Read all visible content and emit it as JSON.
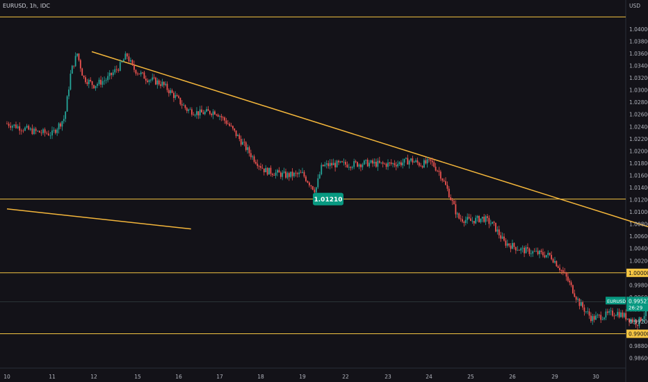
{
  "header": {
    "title": "EURUSD, 1h, IDC",
    "currency": "USD"
  },
  "colors": {
    "background": "#131218",
    "up": "#26a69a",
    "down": "#ef5350",
    "trend": "#f5b73b",
    "level": "#f5c542",
    "zone": "#5a2a30",
    "label_green": "#089981",
    "projection": "#ffffff"
  },
  "chart_data": {
    "type": "candlestick",
    "title": "EURUSD, 1h, IDC",
    "x_ticks": [
      "10",
      "11",
      "12",
      "15",
      "16",
      "17",
      "18",
      "19",
      "22",
      "23",
      "24",
      "25",
      "26",
      "29",
      "30"
    ],
    "y_ticks": [
      "1.04000",
      "1.03800",
      "1.03600",
      "1.03400",
      "1.03200",
      "1.03000",
      "1.02800",
      "1.02600",
      "1.02400",
      "1.02200",
      "1.02000",
      "1.01800",
      "1.01600",
      "1.01400",
      "1.01200",
      "1.01000",
      "1.00800",
      "1.00600",
      "1.00400",
      "1.00200",
      "1.00000",
      "0.99800",
      "0.99600",
      "0.99400",
      "0.99200",
      "0.99000",
      "0.98800",
      "0.98600"
    ],
    "ylim": [
      0.9855,
      1.0425
    ],
    "price_path": [
      [
        0,
        1.0245
      ],
      [
        0.6,
        1.0232
      ],
      [
        1.0,
        1.0228
      ],
      [
        1.3,
        1.0255
      ],
      [
        1.45,
        1.033
      ],
      [
        1.6,
        1.036
      ],
      [
        1.75,
        1.032
      ],
      [
        2.0,
        1.0308
      ],
      [
        2.3,
        1.0318
      ],
      [
        2.6,
        1.034
      ],
      [
        2.75,
        1.0358
      ],
      [
        2.9,
        1.0335
      ],
      [
        3.2,
        1.032
      ],
      [
        3.6,
        1.031
      ],
      [
        3.9,
        1.029
      ],
      [
        4.2,
        1.0268
      ],
      [
        4.5,
        1.0262
      ],
      [
        4.9,
        1.0265
      ],
      [
        5.2,
        1.0245
      ],
      [
        5.5,
        1.0218
      ],
      [
        5.8,
        1.019
      ],
      [
        6.1,
        1.0168
      ],
      [
        6.6,
        1.016
      ],
      [
        7.0,
        1.0162
      ],
      [
        7.3,
        1.0135
      ],
      [
        7.45,
        1.0175
      ],
      [
        7.7,
        1.0178
      ],
      [
        8.1,
        1.0178
      ],
      [
        8.5,
        1.018
      ],
      [
        8.9,
        1.0178
      ],
      [
        9.3,
        1.018
      ],
      [
        9.55,
        1.0185
      ],
      [
        9.8,
        1.0178
      ],
      [
        10.05,
        1.0182
      ],
      [
        10.25,
        1.0165
      ],
      [
        10.45,
        1.0135
      ],
      [
        10.7,
        1.009
      ],
      [
        11.0,
        1.0085
      ],
      [
        11.3,
        1.009
      ],
      [
        11.55,
        1.0078
      ],
      [
        11.8,
        1.005
      ],
      [
        12.2,
        1.0038
      ],
      [
        12.6,
        1.0032
      ],
      [
        12.9,
        1.0028
      ],
      [
        13.1,
        1.001
      ],
      [
        13.3,
        0.999
      ],
      [
        13.6,
        0.995
      ],
      [
        13.9,
        0.9925
      ],
      [
        14.2,
        0.993
      ],
      [
        14.5,
        0.9935
      ],
      [
        14.8,
        0.9925
      ],
      [
        15.0,
        0.9918
      ],
      [
        15.2,
        0.9935
      ],
      [
        15.4,
        0.9985
      ],
      [
        15.6,
        0.9975
      ],
      [
        15.8,
        0.9965
      ],
      [
        16.0,
        0.996
      ],
      [
        16.3,
        0.995
      ],
      [
        16.5,
        0.9953
      ]
    ],
    "last_price": "0.99527",
    "last_symbol": "EURUSD",
    "countdown": "26:29",
    "price_label": "1.01210",
    "horizontal_levels": [
      {
        "price": 1.042,
        "label": ""
      },
      {
        "price": 1.0121,
        "label": ""
      },
      {
        "price": 1.0,
        "label": "1.00000"
      },
      {
        "price": 0.99,
        "label": "0.99000"
      }
    ],
    "trendlines": [
      {
        "from": [
          1.95,
          1.0363
        ],
        "to": [
          17.6,
          1.0025
        ]
      },
      {
        "from": [
          0,
          1.0105
        ],
        "to": [
          4.3,
          1.0072
        ]
      }
    ],
    "supply_zone": {
      "x0": 16.4,
      "x1": 22.3,
      "y0": 1.0062,
      "y1": 1.0133
    },
    "projection_path": [
      [
        16.5,
        0.994
      ],
      [
        17.4,
        0.9995
      ],
      [
        17.8,
        0.9982
      ],
      [
        18.6,
        1.0062
      ],
      [
        19.5,
        0.995
      ],
      [
        19.8,
        0.9962
      ]
    ]
  }
}
